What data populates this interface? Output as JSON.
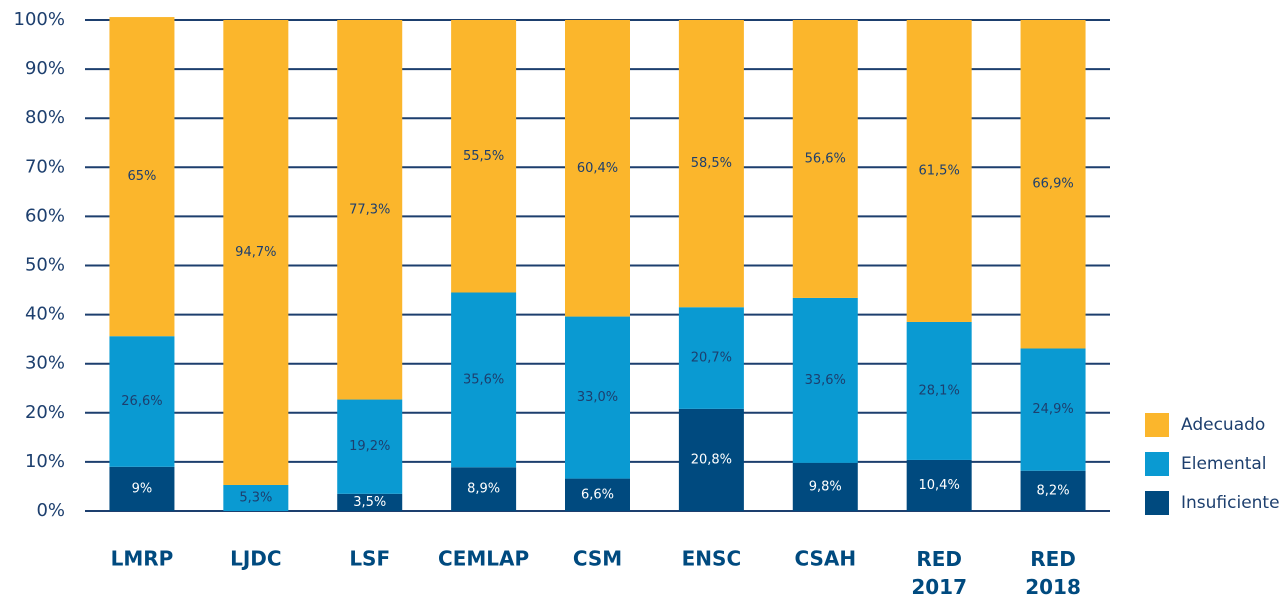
{
  "chart_data": {
    "type": "stacked_bar",
    "categories": [
      "LMRP",
      "LJDC",
      "LSF",
      "CEMLAP",
      "CSM",
      "ENSC",
      "CSAH",
      "RED 2017",
      "RED 2018"
    ],
    "series": [
      {
        "name": "Insuficiente",
        "color": "#004a7f",
        "label_color": "#ffffff",
        "values": [
          9,
          null,
          3.5,
          8.9,
          6.6,
          20.8,
          9.8,
          10.4,
          8.2
        ],
        "value_labels": [
          "9%",
          null,
          "3,5%",
          "8,9%",
          "6,6%",
          "20,8%",
          "9,8%",
          "10,4%",
          "8,2%"
        ]
      },
      {
        "name": "Elemental",
        "color": "#0a9ad2",
        "label_color": "#1d3f6e",
        "values": [
          26.6,
          5.3,
          19.2,
          35.6,
          33.0,
          20.7,
          33.6,
          28.1,
          24.9
        ],
        "value_labels": [
          "26,6%",
          "5,3%",
          "19,2%",
          "35,6%",
          "33,0%",
          "20,7%",
          "33,6%",
          "28,1%",
          "24,9%"
        ]
      },
      {
        "name": "Adecuado",
        "color": "#fbb62c",
        "label_color": "#1d3f6e",
        "values": [
          65,
          94.7,
          77.3,
          55.5,
          60.4,
          58.5,
          56.6,
          61.5,
          66.9
        ],
        "value_labels": [
          "65%",
          "94,7%",
          "77,3%",
          "55,5%",
          "60,4%",
          "58,5%",
          "56,6%",
          "61,5%",
          "66,9%"
        ]
      }
    ],
    "ylim": [
      0,
      100
    ],
    "yticks": [
      {
        "value": 0,
        "label": "0%"
      },
      {
        "value": 10,
        "label": "10%"
      },
      {
        "value": 20,
        "label": "20%"
      },
      {
        "value": 30,
        "label": "30%"
      },
      {
        "value": 40,
        "label": "40%"
      },
      {
        "value": 50,
        "label": "50%"
      },
      {
        "value": 60,
        "label": "60%"
      },
      {
        "value": 70,
        "label": "70%"
      },
      {
        "value": 80,
        "label": "80%"
      },
      {
        "value": 90,
        "label": "90%"
      },
      {
        "value": 100,
        "label": "100%"
      }
    ],
    "grid": true,
    "legend": "right"
  }
}
